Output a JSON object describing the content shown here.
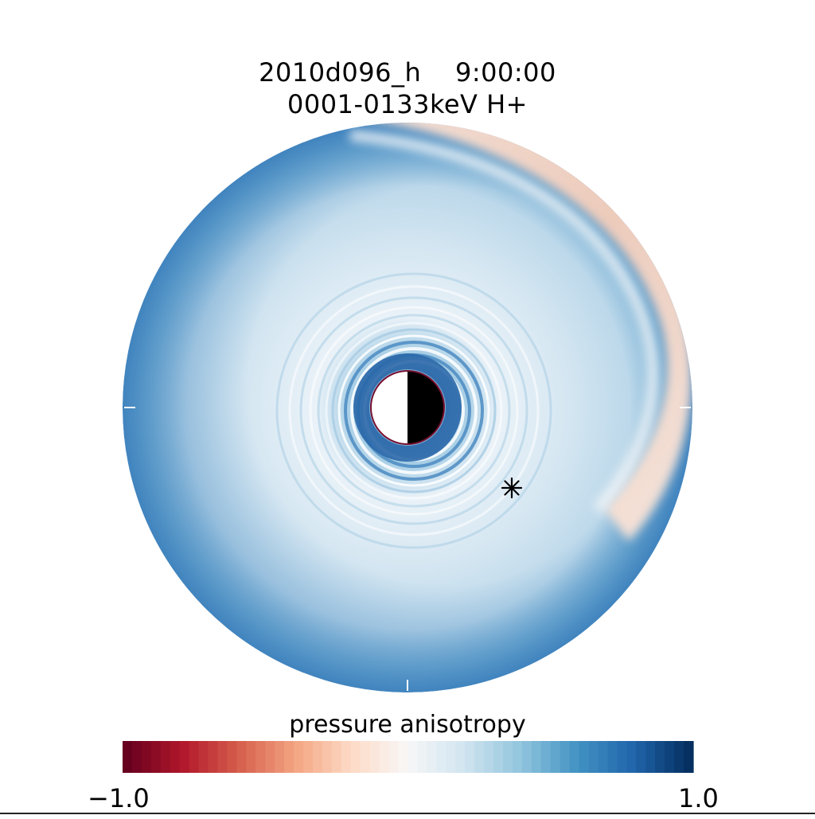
{
  "title": {
    "line1": "2010d096_h    9:00:00",
    "line2": "0001-0133keV H+"
  },
  "colorbar": {
    "label": "pressure anisotropy",
    "min_label": "-1.0",
    "max_label": "1.0",
    "min": -1.0,
    "max": 1.0,
    "colors": [
      "#67001f",
      "#b2182b",
      "#d6604d",
      "#f4a582",
      "#fddbc7",
      "#f7f7f7",
      "#d1e5f0",
      "#92c5de",
      "#4393c3",
      "#2166ac",
      "#053061"
    ]
  },
  "chart_data": {
    "type": "heatmap",
    "projection": "polar",
    "title": "2010d096_h    9:00:00",
    "subtitle": "0001-0133keV H+",
    "colorbar_label": "pressure anisotropy",
    "value_range": [
      -1.0,
      1.0
    ],
    "marker": "asterisk",
    "center_body": "half-lit planet (day side left, night side right)"
  }
}
